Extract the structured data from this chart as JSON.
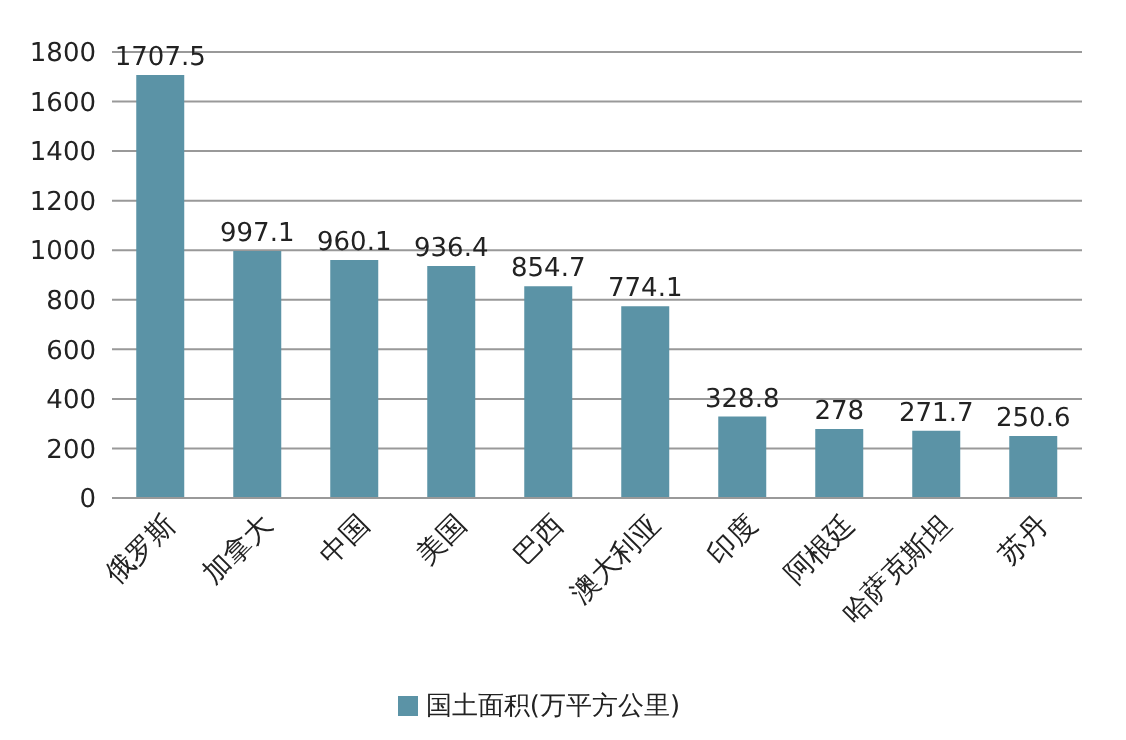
{
  "chart_data": {
    "type": "bar",
    "categories": [
      "俄罗斯",
      "加拿大",
      "中国",
      "美国",
      "巴西",
      "澳大利亚",
      "印度",
      "阿根廷",
      "哈萨克斯坦",
      "苏丹"
    ],
    "series": [
      {
        "name": "国土面积(万平方公里)",
        "color": "#5b93a6",
        "values": [
          1707.5,
          997.1,
          960.1,
          936.4,
          854.7,
          774.1,
          328.8,
          278,
          271.7,
          250.6
        ]
      }
    ],
    "ylim": [
      0,
      1800
    ],
    "yticks": [
      0,
      200,
      400,
      600,
      800,
      1000,
      1200,
      1400,
      1600,
      1800
    ],
    "grid": "y",
    "legend": "bottom",
    "data_labels": true
  }
}
